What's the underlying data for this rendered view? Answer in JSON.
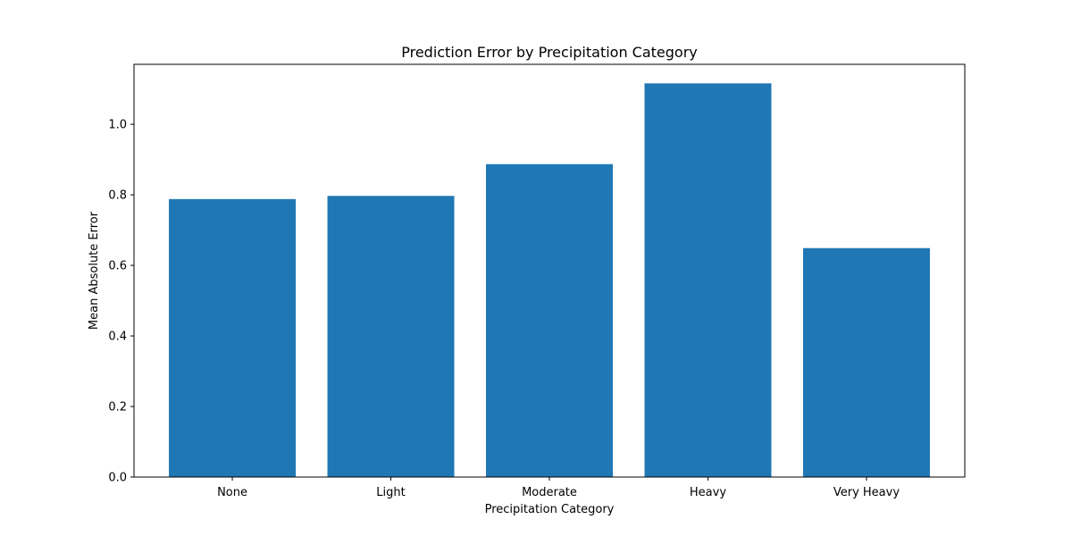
{
  "chart_data": {
    "type": "bar",
    "title": "Prediction Error by Precipitation Category",
    "xlabel": "Precipitation Category",
    "ylabel": "Mean Absolute Error",
    "categories": [
      "None",
      "Light",
      "Moderate",
      "Heavy",
      "Very Heavy"
    ],
    "values": [
      0.788,
      0.797,
      0.887,
      1.116,
      0.649
    ],
    "ylim": [
      0,
      1.17
    ],
    "yticks": [
      0.0,
      0.2,
      0.4,
      0.6,
      0.8,
      1.0
    ],
    "ytick_labels": [
      "0.0",
      "0.2",
      "0.4",
      "0.6",
      "0.8",
      "1.0"
    ],
    "bar_color": "#1f77b4",
    "grid": false,
    "legend": "none"
  }
}
